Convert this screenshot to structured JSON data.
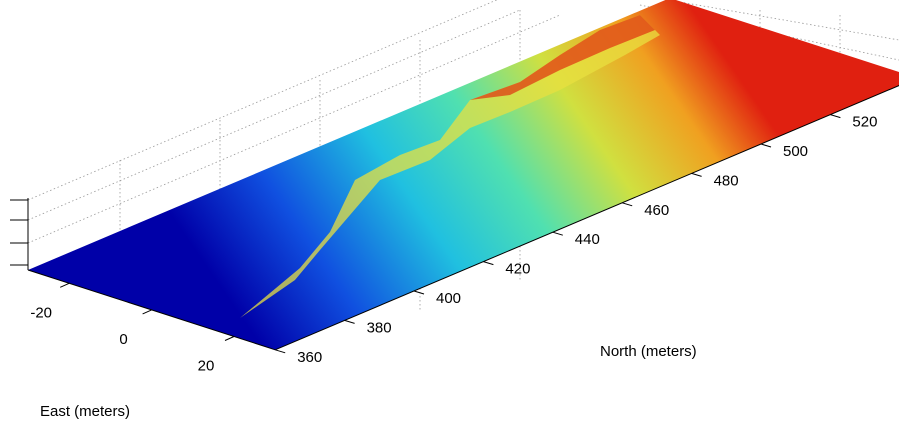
{
  "chart_data": {
    "type": "surface",
    "xlabel": "East (meters)",
    "ylabel": "North (meters)",
    "xlim": [
      -30,
      30
    ],
    "xticks": [
      -20,
      0,
      20
    ],
    "ylim": [
      360,
      545
    ],
    "yticks": [
      360,
      380,
      400,
      420,
      440,
      460,
      480,
      500,
      520
    ]
  }
}
